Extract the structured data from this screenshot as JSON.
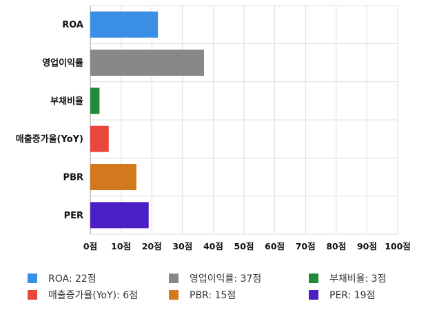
{
  "chart_data": {
    "type": "bar",
    "orientation": "horizontal",
    "categories": [
      "ROA",
      "영업이익률",
      "부채비율",
      "매출증가율(YoY)",
      "PBR",
      "PER"
    ],
    "values": [
      22,
      37,
      3,
      6,
      15,
      19
    ],
    "colors": [
      "#3a8ee6",
      "#888888",
      "#228b3a",
      "#e8473c",
      "#d4781e",
      "#4b1fc3"
    ],
    "xlim": [
      0,
      100
    ],
    "ticks": [
      "0점",
      "10점",
      "20점",
      "30점",
      "40점",
      "50점",
      "60점",
      "70점",
      "80점",
      "90점",
      "100점"
    ],
    "grid": true,
    "legend_position": "bottom",
    "legend": [
      "ROA: 22점",
      "영업이익률: 37점",
      "부채비율: 3점",
      "매출증가율(YoY): 6점",
      "PBR: 15점",
      "PER: 19점"
    ]
  }
}
